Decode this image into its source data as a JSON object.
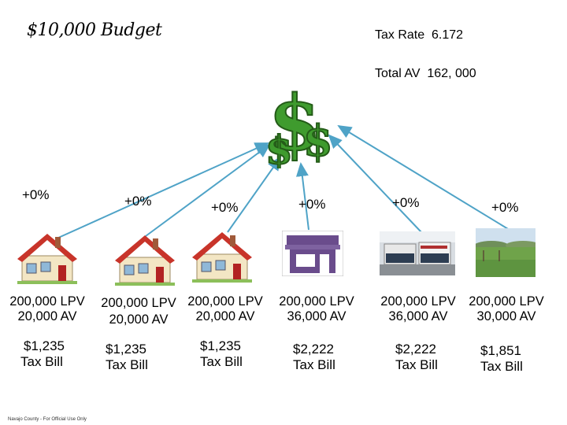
{
  "title": "$10,000 Budget",
  "tax_rate": {
    "label": "Tax Rate",
    "value": "6.172"
  },
  "total_av": {
    "label": "Total AV",
    "value": "162, 000"
  },
  "center_icon": "dollar-signs-icon",
  "properties": [
    {
      "change": "+0%",
      "lpv": "200,000 LPV",
      "av": "20,000 AV",
      "bill": "$1,235",
      "bill_label": "Tax Bill",
      "icon": "house-icon"
    },
    {
      "change": "+0%",
      "lpv": "200,000 LPV",
      "av": "20,000 AV",
      "bill": "$1,235",
      "bill_label": "Tax Bill",
      "icon": "house-icon"
    },
    {
      "change": "+0%",
      "lpv": "200,000 LPV",
      "av": "20,000 AV",
      "bill": "$1,235",
      "bill_label": "Tax Bill",
      "icon": "house-icon"
    },
    {
      "change": "+0%",
      "lpv": "200,000 LPV",
      "av": "36,000 AV",
      "bill": "$2,222",
      "bill_label": "Tax Bill",
      "icon": "storefront-icon"
    },
    {
      "change": "+0%",
      "lpv": "200,000 LPV",
      "av": "36,000 AV",
      "bill": "$2,222",
      "bill_label": "Tax Bill",
      "icon": "strip-mall-icon"
    },
    {
      "change": "+0%",
      "lpv": "200,000 LPV",
      "av": "30,000 AV",
      "bill": "$1,851",
      "bill_label": "Tax Bill",
      "icon": "farmland-icon"
    }
  ],
  "footer": "Navajo County - For Official Use Only",
  "colors": {
    "arrow": "#4fa3c7",
    "dollar": "#3f9b2e",
    "store": "#6a4c8c"
  }
}
